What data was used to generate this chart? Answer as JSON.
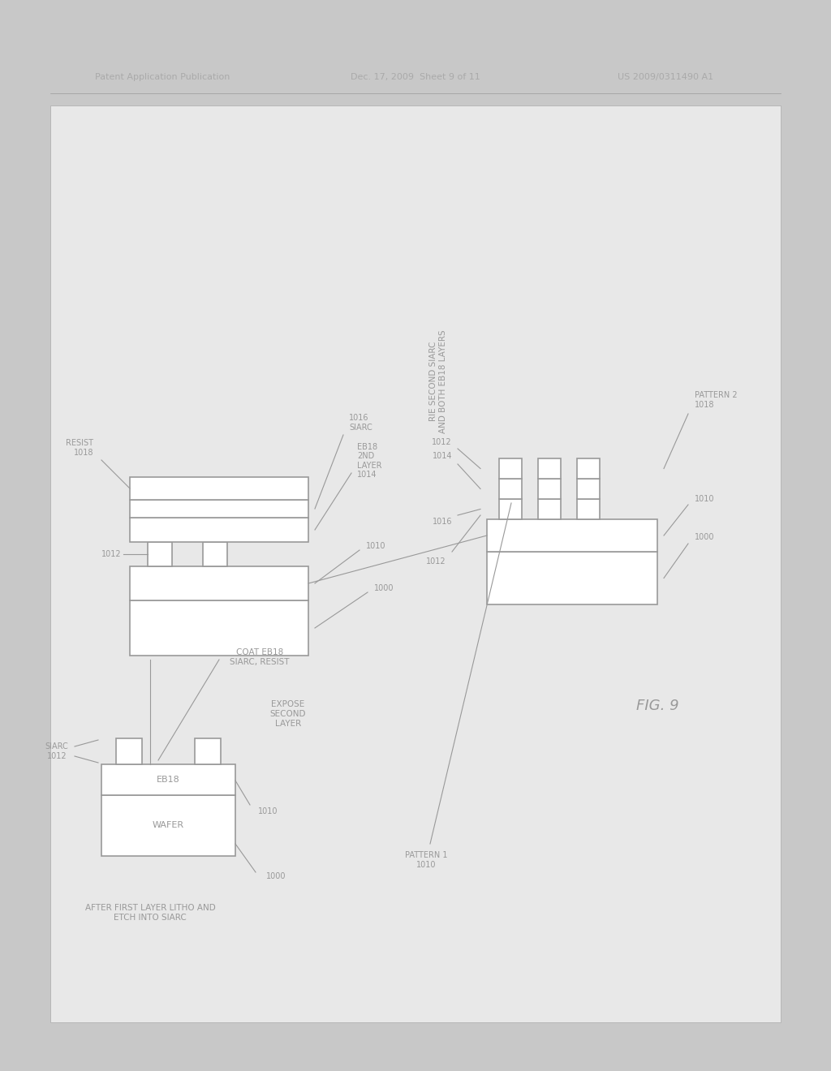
{
  "header_left": "Patent Application Publication",
  "header_mid": "Dec. 17, 2009  Sheet 9 of 11",
  "header_right": "US 2009/0311490 A1",
  "bg_outer": "#c8c8c8",
  "bg_inner": "#d4d4d4",
  "line_color": "#999999",
  "text_color": "#999999",
  "fig_label": "FIG. 9"
}
